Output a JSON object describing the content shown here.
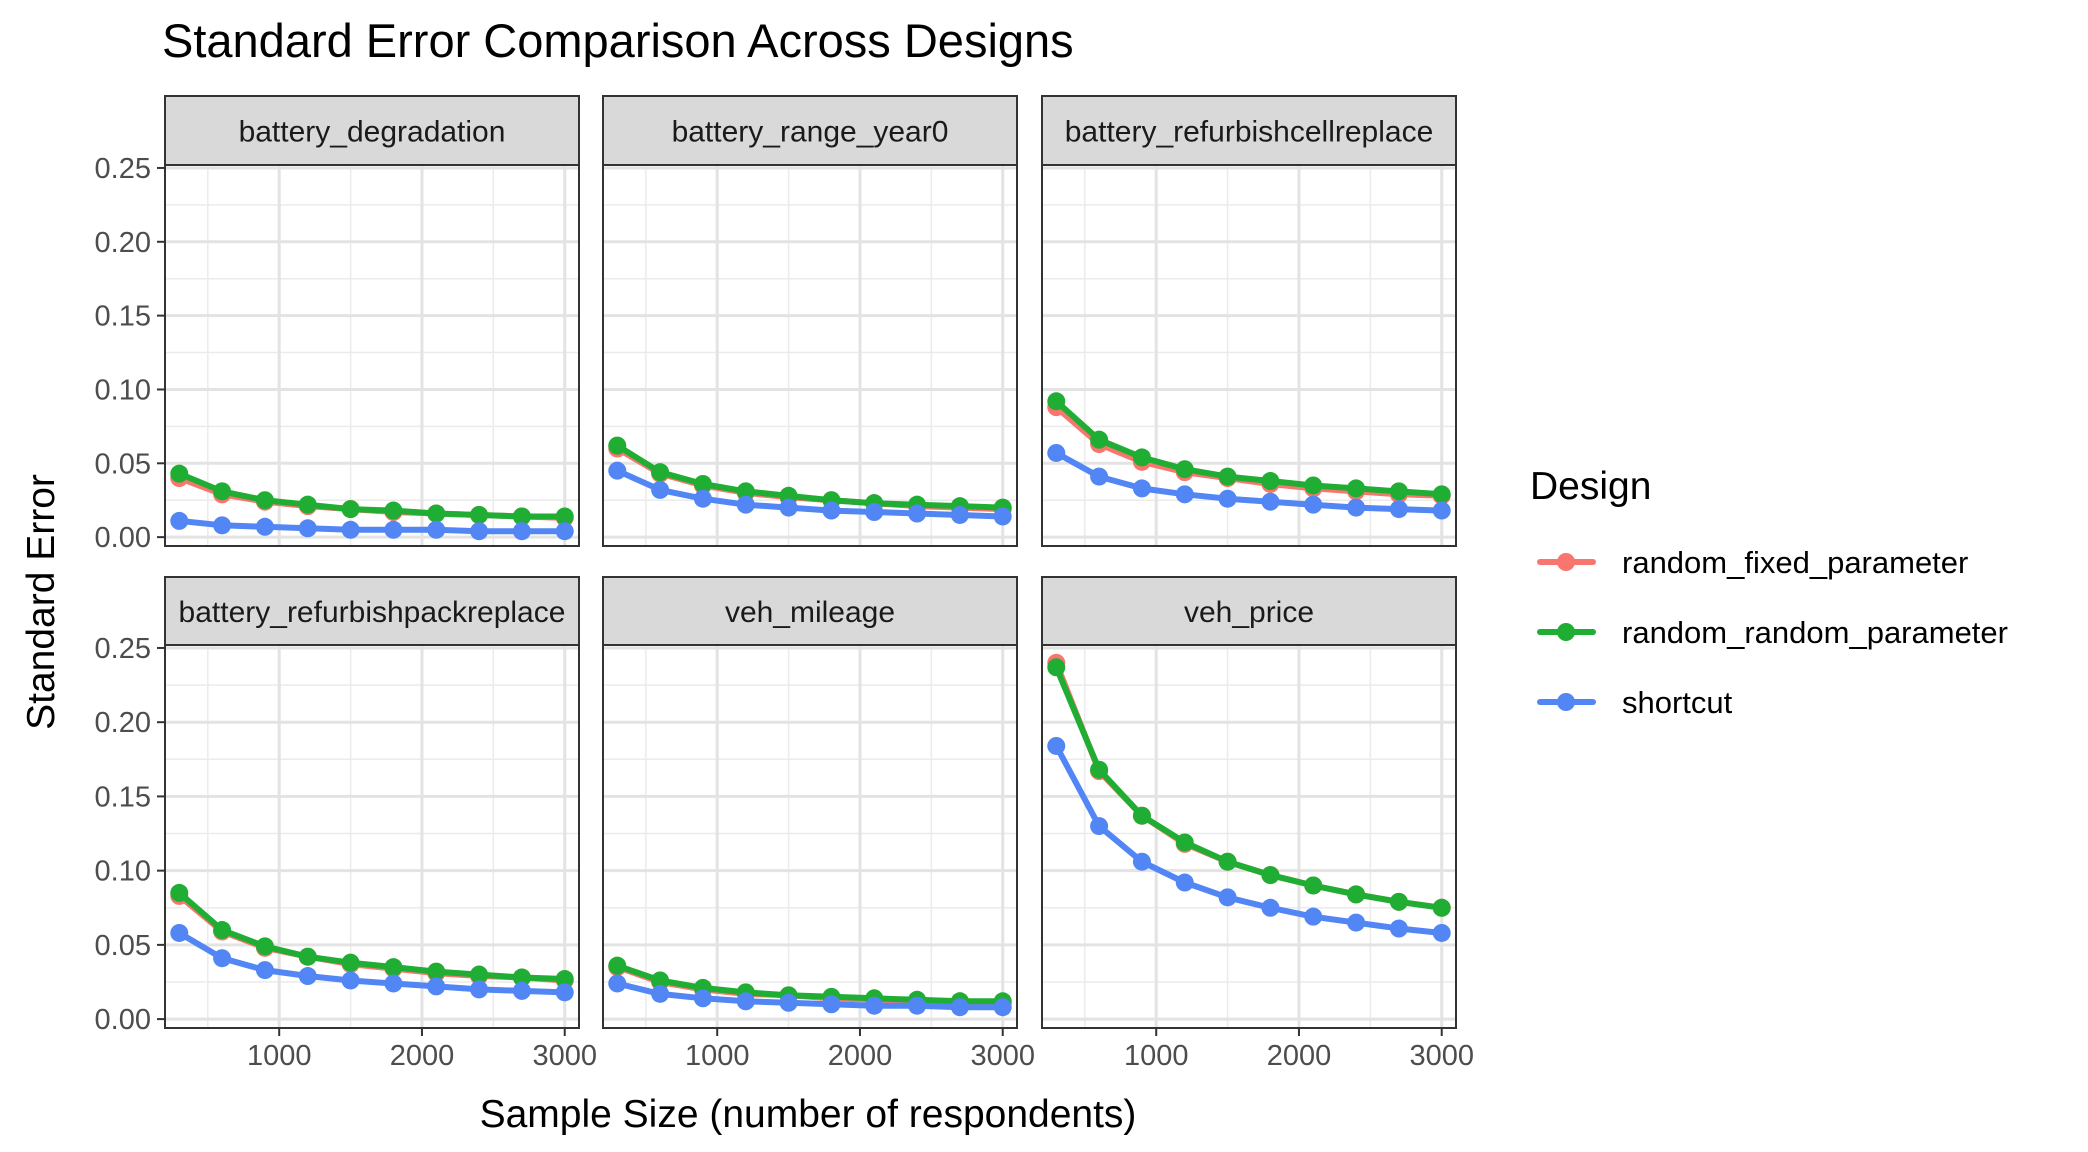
{
  "chart_data": {
    "type": "line",
    "title": "Standard Error Comparison Across Designs",
    "xlabel": "Sample Size (number of respondents)",
    "ylabel": "Standard Error",
    "xlim": [
      200,
      3100
    ],
    "ylim": [
      -0.006,
      0.252
    ],
    "x_ticks": [
      1000,
      2000,
      3000
    ],
    "x_tick_labels": [
      "1000",
      "2000",
      "3000"
    ],
    "y_ticks": [
      0,
      0.05,
      0.1,
      0.15,
      0.2,
      0.25
    ],
    "y_tick_labels": [
      "0.00",
      "0.05",
      "0.10",
      "0.15",
      "0.20",
      "0.25"
    ],
    "grid": true,
    "x": [
      300,
      600,
      900,
      1200,
      1500,
      1800,
      2100,
      2400,
      2700,
      3000
    ],
    "legend": {
      "title": "Design",
      "position": "right",
      "entries": [
        {
          "name": "random_fixed_parameter",
          "color": "#F8766D"
        },
        {
          "name": "random_random_parameter",
          "color": "#1FAE33"
        },
        {
          "name": "shortcut",
          "color": "#5186F4"
        }
      ]
    },
    "facets": [
      {
        "label": "battery_degradation",
        "series": [
          {
            "name": "random_fixed_parameter",
            "values": [
              0.04,
              0.029,
              0.024,
              0.021,
              0.019,
              0.017,
              0.016,
              0.015,
              0.014,
              0.013
            ]
          },
          {
            "name": "random_random_parameter",
            "values": [
              0.043,
              0.031,
              0.025,
              0.022,
              0.019,
              0.018,
              0.016,
              0.015,
              0.014,
              0.014
            ]
          },
          {
            "name": "shortcut",
            "values": [
              0.011,
              0.008,
              0.007,
              0.006,
              0.005,
              0.005,
              0.005,
              0.004,
              0.004,
              0.004
            ]
          }
        ]
      },
      {
        "label": "battery_range_year0",
        "series": [
          {
            "name": "random_fixed_parameter",
            "values": [
              0.06,
              0.043,
              0.035,
              0.03,
              0.027,
              0.025,
              0.023,
              0.021,
              0.02,
              0.019
            ]
          },
          {
            "name": "random_random_parameter",
            "values": [
              0.062,
              0.044,
              0.036,
              0.031,
              0.028,
              0.025,
              0.023,
              0.022,
              0.021,
              0.02
            ]
          },
          {
            "name": "shortcut",
            "values": [
              0.045,
              0.032,
              0.026,
              0.022,
              0.02,
              0.018,
              0.017,
              0.016,
              0.015,
              0.014
            ]
          }
        ]
      },
      {
        "label": "battery_refurbishcellreplace",
        "series": [
          {
            "name": "random_fixed_parameter",
            "values": [
              0.088,
              0.063,
              0.051,
              0.044,
              0.04,
              0.036,
              0.033,
              0.031,
              0.029,
              0.028
            ]
          },
          {
            "name": "random_random_parameter",
            "values": [
              0.092,
              0.066,
              0.054,
              0.046,
              0.041,
              0.038,
              0.035,
              0.033,
              0.031,
              0.029
            ]
          },
          {
            "name": "shortcut",
            "values": [
              0.057,
              0.041,
              0.033,
              0.029,
              0.026,
              0.024,
              0.022,
              0.02,
              0.019,
              0.018
            ]
          }
        ]
      },
      {
        "label": "battery_refurbishpackreplace",
        "series": [
          {
            "name": "random_fixed_parameter",
            "values": [
              0.083,
              0.059,
              0.048,
              0.042,
              0.037,
              0.034,
              0.031,
              0.029,
              0.028,
              0.026
            ]
          },
          {
            "name": "random_random_parameter",
            "values": [
              0.085,
              0.06,
              0.049,
              0.042,
              0.038,
              0.035,
              0.032,
              0.03,
              0.028,
              0.027
            ]
          },
          {
            "name": "shortcut",
            "values": [
              0.058,
              0.041,
              0.033,
              0.029,
              0.026,
              0.024,
              0.022,
              0.02,
              0.019,
              0.018
            ]
          }
        ]
      },
      {
        "label": "veh_mileage",
        "series": [
          {
            "name": "random_fixed_parameter",
            "values": [
              0.035,
              0.025,
              0.02,
              0.017,
              0.016,
              0.014,
              0.013,
              0.012,
              0.012,
              0.011
            ]
          },
          {
            "name": "random_random_parameter",
            "values": [
              0.036,
              0.026,
              0.021,
              0.018,
              0.016,
              0.015,
              0.014,
              0.013,
              0.012,
              0.012
            ]
          },
          {
            "name": "shortcut",
            "values": [
              0.024,
              0.017,
              0.014,
              0.012,
              0.011,
              0.01,
              0.009,
              0.009,
              0.008,
              0.008
            ]
          }
        ]
      },
      {
        "label": "veh_price",
        "series": [
          {
            "name": "random_fixed_parameter",
            "values": [
              0.24,
              0.167,
              0.137,
              0.118,
              0.106,
              0.097,
              0.09,
              0.084,
              0.079,
              0.075
            ]
          },
          {
            "name": "random_random_parameter",
            "values": [
              0.237,
              0.168,
              0.137,
              0.119,
              0.106,
              0.097,
              0.09,
              0.084,
              0.079,
              0.075
            ]
          },
          {
            "name": "shortcut",
            "values": [
              0.184,
              0.13,
              0.106,
              0.092,
              0.082,
              0.075,
              0.069,
              0.065,
              0.061,
              0.058
            ]
          }
        ]
      }
    ]
  }
}
